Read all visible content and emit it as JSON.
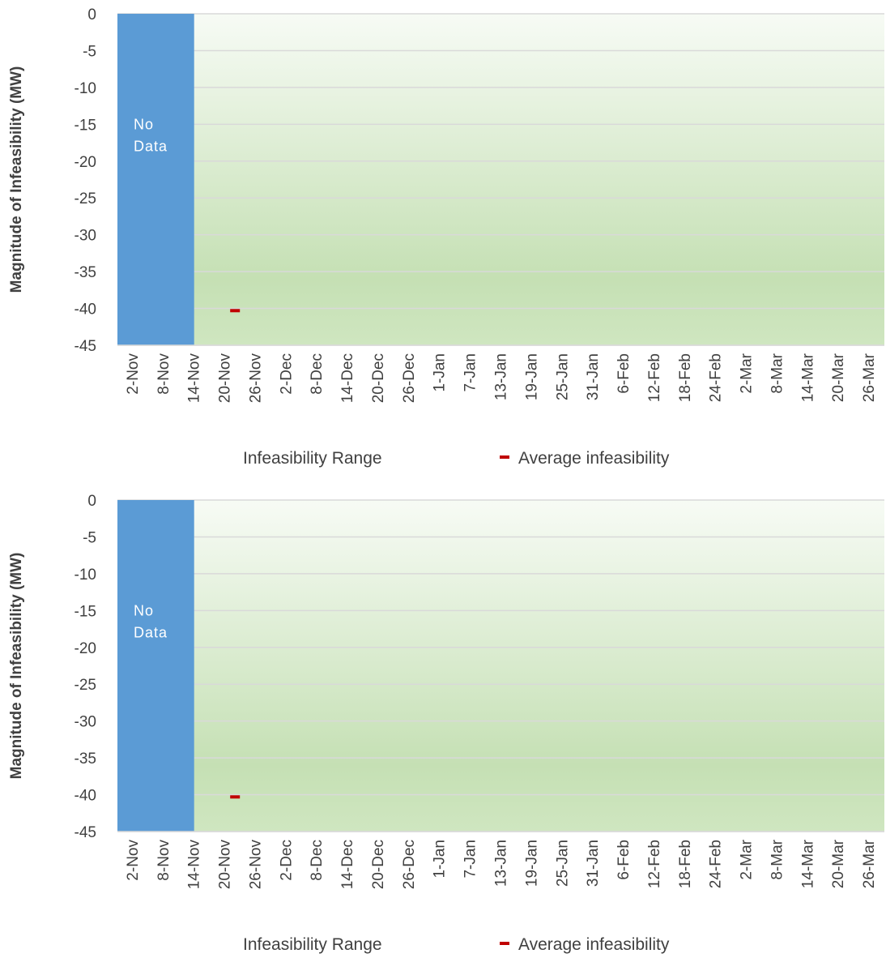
{
  "chart_data": [
    {
      "type": "bar",
      "ylabel": "Magnitude of Infeasibility (MW)",
      "ylim": [
        -45,
        0
      ],
      "yticks": [
        "0",
        "-5",
        "-10",
        "-15",
        "-20",
        "-25",
        "-30",
        "-35",
        "-40",
        "-45"
      ],
      "categories": [
        "2-Nov",
        "8-Nov",
        "14-Nov",
        "20-Nov",
        "26-Nov",
        "2-Dec",
        "8-Dec",
        "14-Dec",
        "20-Dec",
        "26-Dec",
        "1-Jan",
        "7-Jan",
        "13-Jan",
        "19-Jan",
        "25-Jan",
        "31-Jan",
        "6-Feb",
        "12-Feb",
        "18-Feb",
        "24-Feb",
        "2-Mar",
        "8-Mar",
        "14-Mar",
        "20-Mar",
        "26-Mar"
      ],
      "grid": true,
      "no_data": {
        "label_line1": "No",
        "label_line2": "Data",
        "from": "2-Nov",
        "to": "14-Nov",
        "color": "#5b9bd5"
      },
      "series": [
        {
          "name": "Infeasibility Range",
          "type": "range",
          "color": "#c5e0b4"
        },
        {
          "name": "Average infeasibility",
          "type": "marker",
          "color": "#c00000",
          "points": [
            {
              "x": "22-Nov",
              "y": -40.3
            }
          ]
        }
      ],
      "legend": "bottom"
    },
    {
      "type": "bar",
      "ylabel": "Magnitude of Infeasibility (MW)",
      "ylim": [
        -45,
        0
      ],
      "yticks": [
        "0",
        "-5",
        "-10",
        "-15",
        "-20",
        "-25",
        "-30",
        "-35",
        "-40",
        "-45"
      ],
      "categories": [
        "2-Nov",
        "8-Nov",
        "14-Nov",
        "20-Nov",
        "26-Nov",
        "2-Dec",
        "8-Dec",
        "14-Dec",
        "20-Dec",
        "26-Dec",
        "1-Jan",
        "7-Jan",
        "13-Jan",
        "19-Jan",
        "25-Jan",
        "31-Jan",
        "6-Feb",
        "12-Feb",
        "18-Feb",
        "24-Feb",
        "2-Mar",
        "8-Mar",
        "14-Mar",
        "20-Mar",
        "26-Mar"
      ],
      "grid": true,
      "no_data": {
        "label_line1": "No",
        "label_line2": "Data",
        "from": "2-Nov",
        "to": "14-Nov",
        "color": "#5b9bd5"
      },
      "series": [
        {
          "name": "Infeasibility Range",
          "type": "range",
          "color": "#c5e0b4"
        },
        {
          "name": "Average infeasibility",
          "type": "marker",
          "color": "#c00000",
          "points": [
            {
              "x": "22-Nov",
              "y": -40.3
            }
          ]
        }
      ],
      "legend": "bottom"
    }
  ]
}
